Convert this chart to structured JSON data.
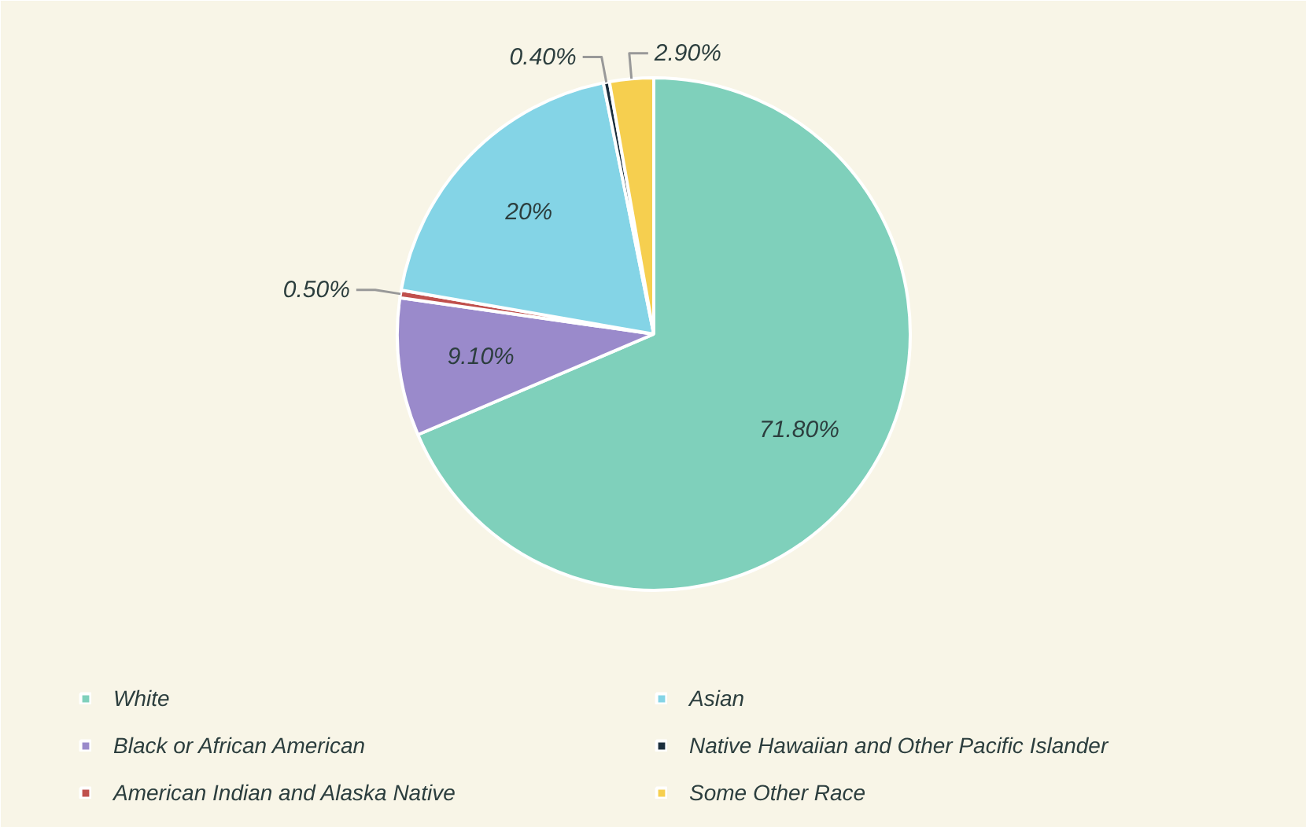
{
  "chart_data": {
    "type": "pie",
    "categories": [
      "White",
      "Black or African American",
      "American Indian and Alaska Native",
      "Asian",
      "Native Hawaiian and Other Pacific Islander",
      "Some Other Race"
    ],
    "values": [
      71.8,
      9.1,
      0.5,
      20,
      0.4,
      2.9
    ],
    "colors": [
      "#7fd0bb",
      "#9a8acb",
      "#c0504d",
      "#84d4e6",
      "#1b2e3c",
      "#f6cf4f"
    ],
    "value_labels": [
      "71.80%",
      "9.10%",
      "0.50%",
      "20%",
      "0.40%",
      "2.90%"
    ],
    "legend": "bottom"
  }
}
